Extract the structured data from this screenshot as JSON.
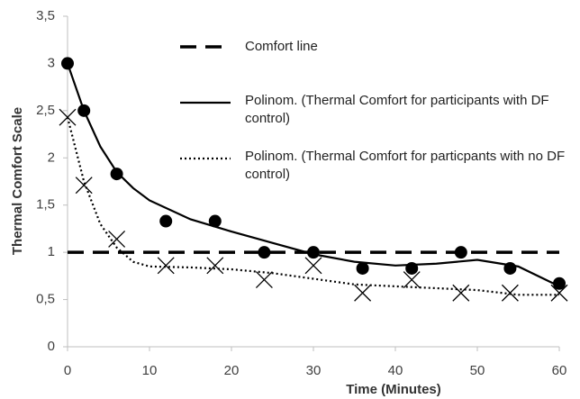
{
  "chart_data": {
    "type": "scatter",
    "x_label": "Time (Minutes)",
    "y_label": "Thermal Comfort Scale",
    "xlim": [
      0,
      60
    ],
    "xticks": [
      0,
      10,
      20,
      30,
      40,
      50,
      60
    ],
    "ylim": [
      0,
      3.5
    ],
    "yticks": [
      0,
      {
        "value": 0.5,
        "label": "0,5"
      },
      1,
      {
        "value": 1.5,
        "label": "1,5"
      },
      2,
      {
        "value": 2.5,
        "label": "2,5"
      },
      3,
      {
        "value": 3.5,
        "label": "3,5"
      }
    ],
    "series": [
      {
        "marker": "circle",
        "color": "#000000",
        "x": [
          0,
          2,
          6,
          12,
          18,
          24,
          30,
          36,
          42,
          48,
          54,
          60
        ],
        "values": [
          3,
          2.5,
          1.83,
          1.33,
          1.33,
          1,
          1,
          0.83,
          0.83,
          1,
          0.83,
          0.67
        ]
      },
      {
        "marker": "cross",
        "color": "#000000",
        "x": [
          0,
          2,
          6,
          12,
          18,
          24,
          30,
          36,
          42,
          48,
          54,
          60
        ],
        "values": [
          2.43,
          1.71,
          1.14,
          0.86,
          0.86,
          0.71,
          0.86,
          0.57,
          0.71,
          0.57,
          0.57,
          0.57
        ]
      }
    ],
    "lines": [
      {
        "name": "Comfort line",
        "style": "dashed",
        "color": "#000000",
        "x": [
          0,
          60
        ],
        "values": [
          1,
          1
        ]
      },
      {
        "name": "Polinom. (Thermal Comfort for participants with DF control)",
        "style": "solid",
        "color": "#000000",
        "x": [
          0,
          2,
          4,
          6,
          8,
          10,
          15,
          20,
          25,
          30,
          35,
          40,
          45,
          50,
          55,
          60
        ],
        "values": [
          3.0,
          2.5,
          2.12,
          1.85,
          1.68,
          1.55,
          1.35,
          1.22,
          1.1,
          0.98,
          0.9,
          0.86,
          0.88,
          0.92,
          0.85,
          0.64
        ]
      },
      {
        "name": "Polinom. (Thermal Comfort for particpants with no DF control)",
        "style": "dotted",
        "color": "#000000",
        "x": [
          0,
          2,
          4,
          6,
          8,
          10,
          15,
          20,
          25,
          30,
          35,
          40,
          45,
          50,
          55,
          60
        ],
        "values": [
          2.43,
          1.75,
          1.3,
          1.05,
          0.9,
          0.85,
          0.84,
          0.82,
          0.78,
          0.72,
          0.66,
          0.64,
          0.62,
          0.6,
          0.55,
          0.55
        ]
      }
    ],
    "legend": "upper right"
  }
}
